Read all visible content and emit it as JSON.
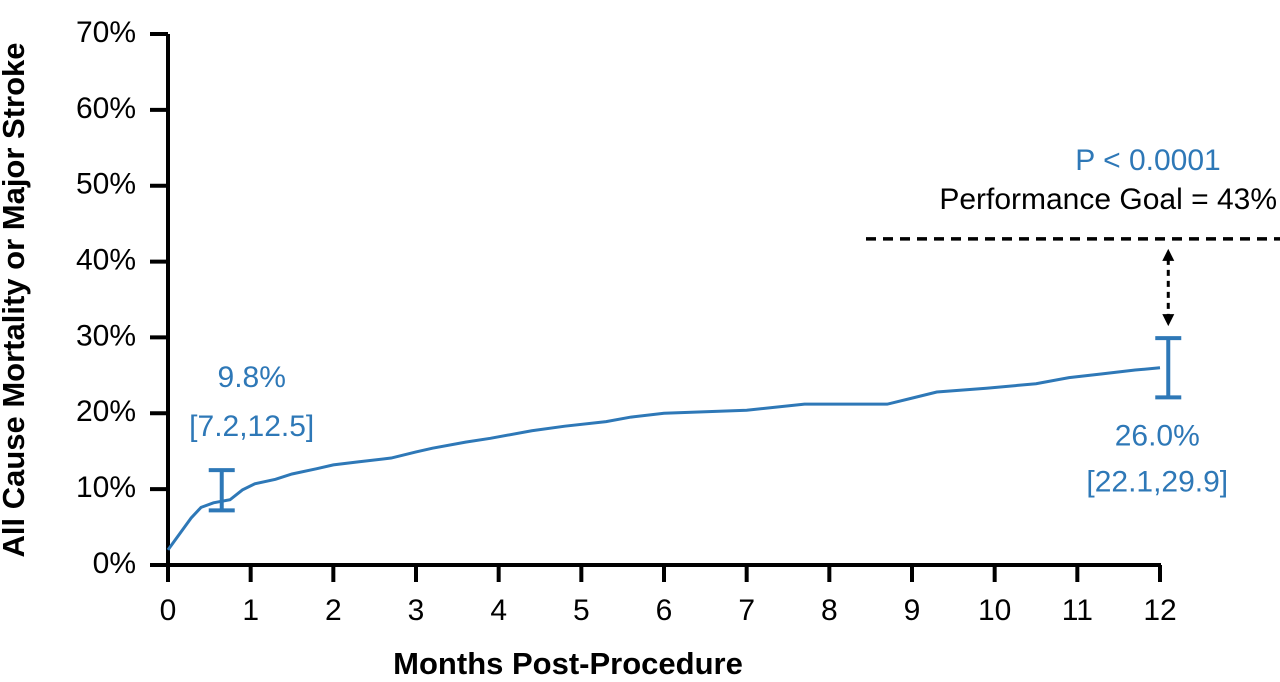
{
  "chart_data": {
    "type": "line",
    "x_label": "Months Post-Procedure",
    "y_label": "All Cause Mortality or Major Stroke",
    "xlim": [
      0,
      12
    ],
    "ylim": [
      0,
      70
    ],
    "xticks": [
      0,
      1,
      2,
      3,
      4,
      5,
      6,
      7,
      8,
      9,
      10,
      11,
      12
    ],
    "yticks": [
      {
        "value": 0,
        "label": "0%"
      },
      {
        "value": 10,
        "label": "10%"
      },
      {
        "value": 20,
        "label": "20%"
      },
      {
        "value": 30,
        "label": "30%"
      },
      {
        "value": 40,
        "label": "40%"
      },
      {
        "value": 50,
        "label": "50%"
      },
      {
        "value": 60,
        "label": "60%"
      },
      {
        "value": 70,
        "label": "70%"
      }
    ],
    "color": "#2e78b7",
    "x": [
      0,
      0.28,
      0.4,
      0.55,
      0.75,
      0.9,
      1.05,
      1.3,
      1.5,
      1.8,
      2.0,
      2.3,
      2.7,
      3.0,
      3.2,
      3.6,
      3.9,
      4.4,
      4.8,
      5.3,
      5.6,
      6.0,
      7.0,
      7.7,
      8.7,
      9.0,
      9.3,
      9.9,
      10.5,
      10.9,
      11.3,
      11.7,
      12.0
    ],
    "values": [
      2.0,
      6.2,
      7.6,
      8.2,
      8.6,
      9.9,
      10.7,
      11.3,
      12.0,
      12.7,
      13.2,
      13.6,
      14.1,
      14.9,
      15.4,
      16.2,
      16.7,
      17.7,
      18.3,
      18.9,
      19.5,
      20.0,
      20.4,
      21.2,
      21.2,
      22.0,
      22.8,
      23.3,
      23.9,
      24.7,
      25.2,
      25.7,
      26.0
    ],
    "estimates": [
      {
        "x": 0.65,
        "value": 9.8,
        "value_label": "9.8%",
        "low": 7.2,
        "high": 12.5,
        "interval_label": "[7.2,12.5]"
      },
      {
        "x": 12.1,
        "value": 26.0,
        "value_label": "26.0%",
        "low": 22.1,
        "high": 29.9,
        "interval_label": "[22.1,29.9]"
      }
    ],
    "performance_goal": 43,
    "performance_goal_label": "Performance Goal = 43%",
    "p_value_label": "P < 0.0001"
  }
}
